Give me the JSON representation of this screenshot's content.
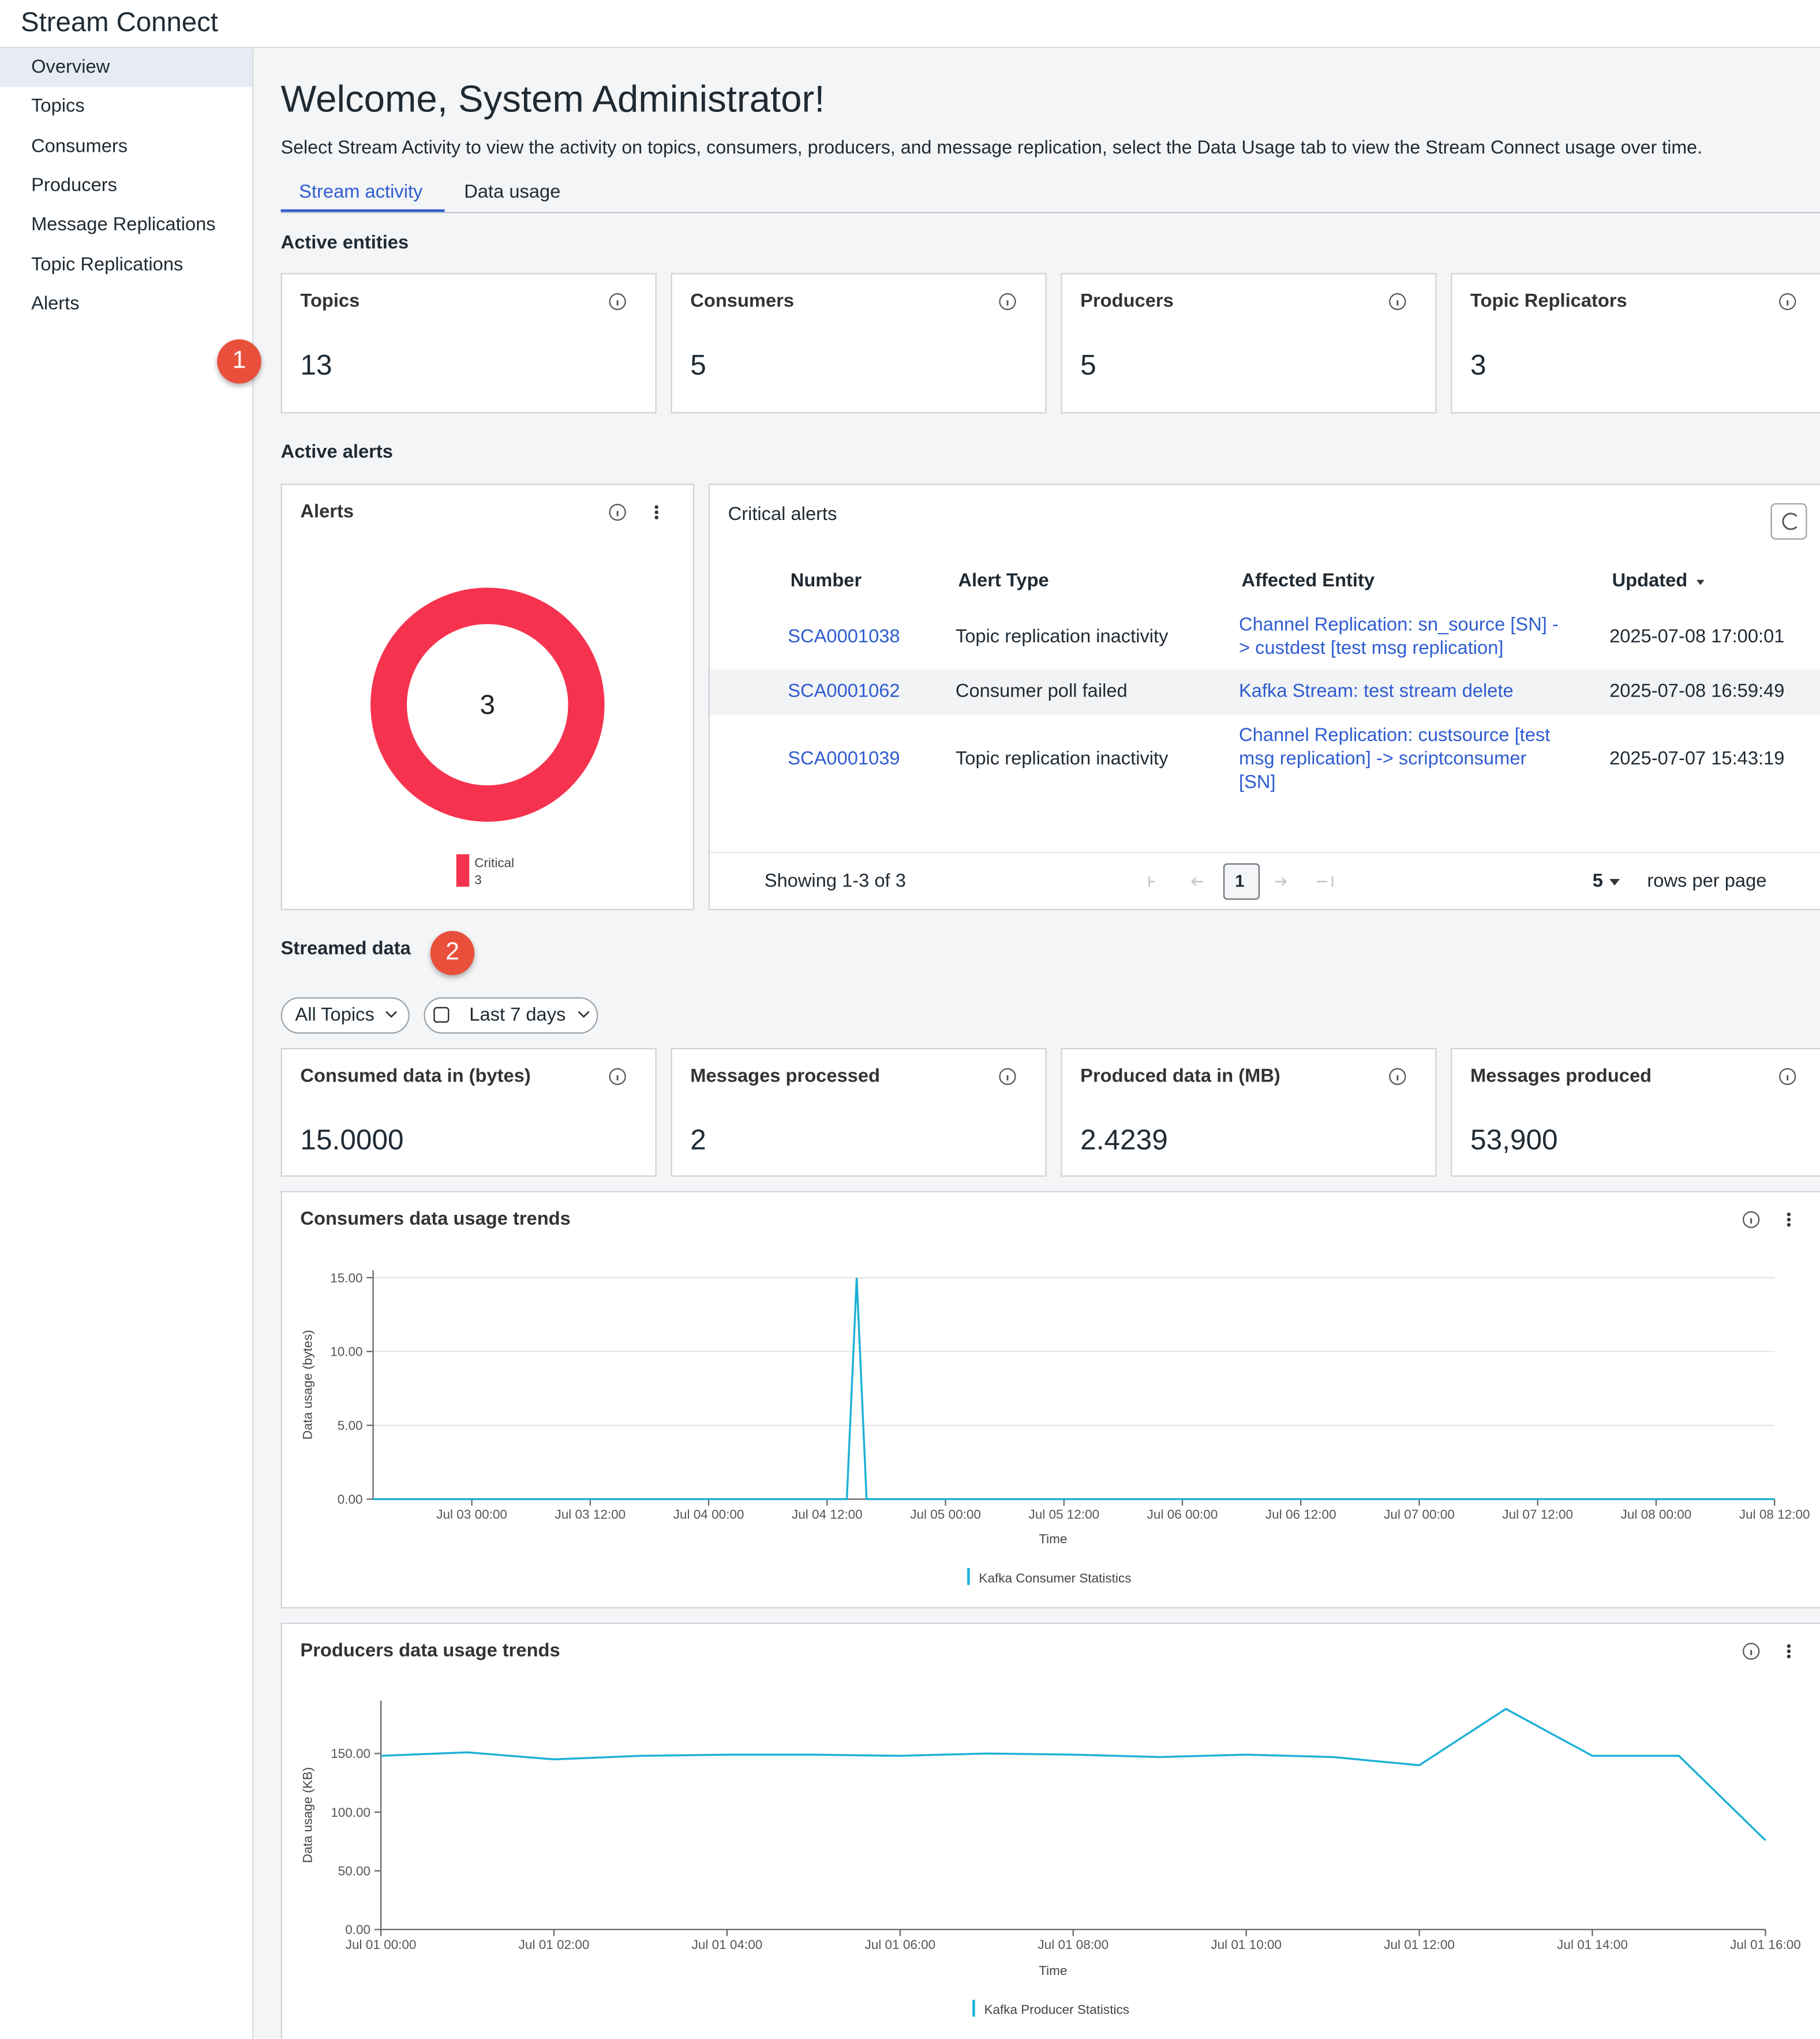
{
  "sidebar": {
    "app_title": "Stream Connect",
    "nav": [
      "Overview",
      "Topics",
      "Consumers",
      "Producers",
      "Message Replications",
      "Topic Replications",
      "Alerts"
    ]
  },
  "header": {
    "title": "Welcome, System Administrator!",
    "description": "Select Stream Activity to view the activity on topics, consumers, producers, and message replication, select the Data Usage tab to view the Stream Connect usage over time.",
    "tabs": [
      "Stream activity",
      "Data usage"
    ]
  },
  "annotations": [
    "1",
    "2"
  ],
  "active_entities": {
    "heading": "Active entities",
    "cards": [
      {
        "label": "Topics",
        "value": "13"
      },
      {
        "label": "Consumers",
        "value": "5"
      },
      {
        "label": "Producers",
        "value": "5"
      },
      {
        "label": "Topic Replicators",
        "value": "3"
      }
    ]
  },
  "active_alerts": {
    "heading": "Active alerts",
    "critical_alerts": {
      "title": "Critical alerts",
      "columns": [
        "Number",
        "Alert Type",
        "Affected Entity",
        "Updated"
      ],
      "rows": [
        [
          "SCA0001038",
          "Topic replication inactivity",
          "Channel Replication: sn_source [SN] -> custdest [test msg replication]",
          "2025-07-08 17:00:01"
        ],
        [
          "SCA0001062",
          "Consumer poll failed",
          "Kafka Stream: test stream delete",
          "2025-07-08 16:59:49"
        ],
        [
          "SCA0001039",
          "Topic replication inactivity",
          "Channel Replication: custsource [test msg replication] -> scriptconsumer [SN]",
          "2025-07-07 15:43:19"
        ]
      ],
      "footer": "Showing 1-3 of 3",
      "page": "1",
      "rows_per_page": "5",
      "rows_per_page_label": "rows per page"
    }
  },
  "streamed_data": {
    "heading": "Streamed data",
    "filters": [
      "All Topics",
      "Last 7 days"
    ],
    "cards": [
      {
        "label": "Consumed data in (bytes)",
        "value": "15.0000"
      },
      {
        "label": "Messages processed",
        "value": "2"
      },
      {
        "label": "Produced data in (MB)",
        "value": "2.4239"
      },
      {
        "label": "Messages produced",
        "value": "53,900"
      }
    ]
  },
  "chart_data": [
    {
      "type": "donut",
      "title": "Alerts",
      "center_label": "3",
      "categories": [
        "Critical"
      ],
      "values": [
        3
      ],
      "colors": [
        "#f5334f"
      ]
    },
    {
      "type": "line",
      "title": "Consumers data usage trends",
      "x_label": "Time",
      "y_label": "Data usage (bytes)",
      "grid": true,
      "x": [
        "Jul 02 14:00",
        "Jul 04 14:00",
        "Jul 04 15:00",
        "Jul 04 16:00",
        "Jul 08 12:00"
      ],
      "series": [
        {
          "name": "Kafka Consumer Statistics",
          "color": "#1ab0d6",
          "values": [
            0,
            0,
            15,
            0,
            0
          ]
        }
      ],
      "xlim": [
        "Jul 02 14:00",
        "Jul 08 12:00"
      ],
      "ylim": [
        0,
        15.5
      ],
      "xticks": [
        "Jul 03 00:00",
        "Jul 03 12:00",
        "Jul 04 00:00",
        "Jul 04 12:00",
        "Jul 05 00:00",
        "Jul 05 12:00",
        "Jul 06 00:00",
        "Jul 06 12:00",
        "Jul 07 00:00",
        "Jul 07 12:00",
        "Jul 08 00:00",
        "Jul 08 12:00"
      ],
      "yticks": [
        {
          "value": 0,
          "label": "0.00"
        },
        {
          "value": 5,
          "label": "5.00"
        },
        {
          "value": 10,
          "label": "10.00"
        },
        {
          "value": 15,
          "label": "15.00"
        }
      ]
    },
    {
      "type": "line",
      "title": "Producers data usage trends",
      "x_label": "Time",
      "y_label": "Data usage (KB)",
      "grid": false,
      "x": [
        "Jul 01 00:00",
        "Jul 01 01:00",
        "Jul 01 02:00",
        "Jul 01 03:00",
        "Jul 01 04:00",
        "Jul 01 05:00",
        "Jul 01 06:00",
        "Jul 01 07:00",
        "Jul 01 08:00",
        "Jul 01 09:00",
        "Jul 01 10:00",
        "Jul 01 11:00",
        "Jul 01 12:00",
        "Jul 01 13:00",
        "Jul 01 14:00",
        "Jul 01 15:00",
        "Jul 01 16:00"
      ],
      "series": [
        {
          "name": "Kafka Producer Statistics",
          "color": "#1ab0d6",
          "values": [
            148,
            151,
            145,
            148,
            149,
            149,
            148,
            150,
            149,
            147,
            149,
            147,
            140,
            188,
            148,
            148,
            76
          ]
        }
      ],
      "xlim": [
        "Jul 01 00:00",
        "Jul 01 16:00"
      ],
      "ylim": [
        0,
        195
      ],
      "xticks": [
        "Jul 01 00:00",
        "Jul 01 02:00",
        "Jul 01 04:00",
        "Jul 01 06:00",
        "Jul 01 08:00",
        "Jul 01 10:00",
        "Jul 01 12:00",
        "Jul 01 14:00",
        "Jul 01 16:00"
      ],
      "yticks": [
        {
          "value": 0,
          "label": "0.00"
        },
        {
          "value": 50,
          "label": "50.00"
        },
        {
          "value": 100,
          "label": "100.00"
        },
        {
          "value": 150,
          "label": "150.00"
        }
      ]
    }
  ]
}
